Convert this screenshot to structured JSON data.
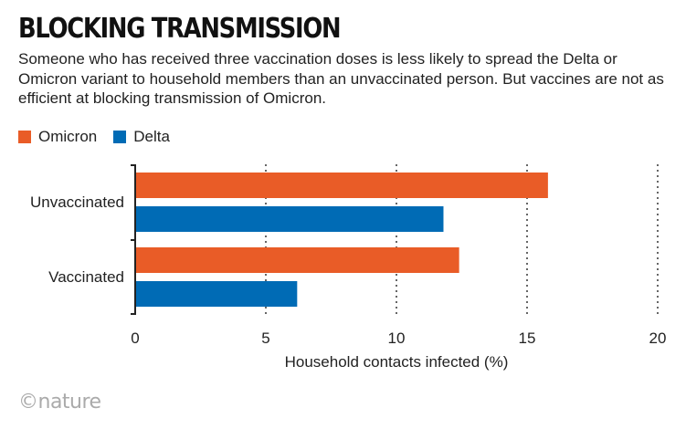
{
  "title": "BLOCKING TRANSMISSION",
  "subtitle": "Someone who has received three vaccination doses is less likely to spread the Delta or Omicron variant to household members than an unvaccinated person. But vaccines are not as efficient at blocking transmission of Omicron.",
  "logo": "©nature",
  "chart_data": {
    "type": "bar",
    "orientation": "horizontal",
    "categories": [
      "Unvaccinated",
      "Vaccinated"
    ],
    "series": [
      {
        "name": "Omicron",
        "color": "#e95c27",
        "values": [
          15.8,
          12.4
        ]
      },
      {
        "name": "Delta",
        "color": "#006bb5",
        "values": [
          11.8,
          6.2
        ]
      }
    ],
    "xlabel": "Household contacts infected (%)",
    "xlim": [
      0,
      20
    ],
    "xticks": [
      "0",
      "5",
      "10",
      "15",
      "20"
    ],
    "grid": "vertical dotted",
    "legend": "top-left"
  }
}
